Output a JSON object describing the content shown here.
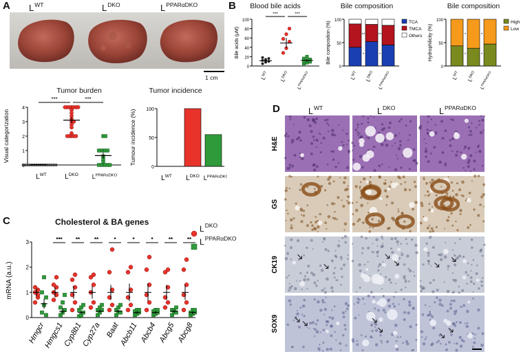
{
  "panels": {
    "A": "A",
    "B": "B",
    "C": "C",
    "D": "D"
  },
  "panelA": {
    "genotypes": [
      {
        "base": "L",
        "sup": "WT"
      },
      {
        "base": "L",
        "sup": "DKO"
      },
      {
        "base": "L",
        "sup": "PPARαDKO"
      }
    ],
    "scalebar": "1 cm"
  },
  "tumor_burden": {
    "title": "Tumor burden",
    "ylabel": "Visual categorization",
    "sig": [
      "***",
      "***"
    ]
  },
  "tumor_incidence": {
    "title": "Tumor incidence",
    "ylabel": "Tumour incidence (%)"
  },
  "blood_bile": {
    "title": "Blood bile acids",
    "ylabel": "Bile acids (μM)",
    "sig": [
      "***",
      "***"
    ]
  },
  "bile_comp": {
    "title": "Bile composition",
    "ylabel": "Bile composition (%)",
    "legend": [
      "TCA",
      "TMCA",
      "Others"
    ],
    "stars": [
      "**",
      "**",
      "*",
      "*"
    ]
  },
  "hydro": {
    "title": "Bile composition",
    "ylabel": "Hydrophilicity (%)",
    "legend": [
      "High",
      "Low"
    ],
    "stars": [
      "*",
      "*",
      "*",
      "*"
    ]
  },
  "panelC": {
    "title": "Cholesterol & BA genes",
    "ylabel": "mRNA (a.u.)",
    "legend": [
      {
        "base": "L",
        "sup": "DKO"
      },
      {
        "base": "L",
        "sup": "PPARαDKO"
      }
    ],
    "genes": [
      "Hmgcr",
      "Hmgcs1",
      "Cyp8b1",
      "Cyp27a",
      "Baat",
      "Abcb11",
      "Abcb4",
      "Abcg5",
      "Abcg8"
    ],
    "sig": [
      "",
      "***",
      "**",
      "**",
      "*",
      "*",
      "*",
      "**",
      "**"
    ]
  },
  "panelD": {
    "columns": [
      {
        "base": "L",
        "sup": "WT"
      },
      {
        "base": "L",
        "sup": "DKO"
      },
      {
        "base": "L",
        "sup": "PPARαDKO"
      }
    ],
    "rows": [
      "H&E",
      "GS",
      "CK19",
      "SOX9"
    ]
  },
  "colors": {
    "red": "#e8332b",
    "green": "#2f9a3a",
    "blue": "#1a3fb3",
    "darkred": "#b3141e",
    "olive": "#7a8a1e",
    "orange": "#f59a1b"
  },
  "chart_data": [
    {
      "type": "scatter",
      "title": "Tumor burden",
      "ylabel": "Visual categorization",
      "categories": [
        "LWT",
        "LDKO",
        "LPPARαDKO"
      ],
      "ylim": [
        0,
        4
      ],
      "yticks": [
        0,
        1,
        2,
        3,
        4
      ],
      "means": [
        0.02,
        3.1,
        0.65
      ],
      "sem": [
        0.02,
        0.2,
        0.2
      ],
      "points": [
        [
          0,
          0,
          0,
          0,
          0,
          0,
          0,
          0,
          0,
          0,
          0,
          0,
          0,
          0,
          0,
          0
        ],
        [
          4,
          4,
          4,
          4,
          4,
          4,
          4,
          3.8,
          3.6,
          3.4,
          3.2,
          3,
          3,
          2.8,
          2.6,
          2.2,
          2,
          2,
          2,
          2,
          2
        ],
        [
          2,
          2,
          1,
          1,
          1,
          1,
          1,
          0.6,
          0.4,
          0.2,
          0,
          0,
          0,
          0,
          0,
          0
        ]
      ]
    },
    {
      "type": "bar",
      "title": "Tumor incidence",
      "ylabel": "Tumour incidence (%)",
      "categories": [
        "LWT",
        "LDKO",
        "LPPARαDKO"
      ],
      "values": [
        0,
        100,
        55
      ],
      "ylim": [
        0,
        100
      ],
      "yticks": [
        0,
        50,
        100
      ]
    },
    {
      "type": "scatter",
      "title": "Blood bile acids",
      "ylabel": "Bile acids (μM)",
      "categories": [
        "LWT",
        "LDKO",
        "LPPARαDKO"
      ],
      "ylim": [
        0,
        100
      ],
      "yticks": [
        0,
        20,
        40,
        60,
        80,
        100
      ],
      "means": [
        11,
        49,
        12
      ],
      "sem": [
        3,
        11,
        3
      ],
      "points": [
        [
          5,
          8,
          10,
          12,
          14,
          16,
          18
        ],
        [
          28,
          38,
          52,
          58,
          68,
          80
        ],
        [
          5,
          7,
          9,
          10,
          12,
          14,
          16,
          20
        ]
      ]
    },
    {
      "type": "bar",
      "title": "Bile composition",
      "ylabel": "Bile composition (%)",
      "categories": [
        "LWT",
        "LDKO",
        "LPPARαDKO"
      ],
      "ylim": [
        0,
        100
      ],
      "yticks": [
        0,
        50,
        100
      ],
      "series": [
        {
          "name": "TCA",
          "values": [
            40,
            52,
            45
          ]
        },
        {
          "name": "TMCA",
          "values": [
            50,
            37,
            42
          ]
        },
        {
          "name": "Others",
          "values": [
            10,
            11,
            13
          ]
        }
      ]
    },
    {
      "type": "bar",
      "title": "Bile composition",
      "ylabel": "Hydrophilicity (%)",
      "categories": [
        "LWT",
        "LDKO",
        "LPPARαDKO"
      ],
      "ylim": [
        0,
        100
      ],
      "yticks": [
        0,
        50,
        100
      ],
      "series": [
        {
          "name": "High",
          "values": [
            43,
            38,
            47
          ]
        },
        {
          "name": "Low",
          "values": [
            57,
            62,
            53
          ]
        }
      ]
    },
    {
      "type": "scatter",
      "title": "Cholesterol & BA genes",
      "ylabel": "mRNA (a.u.)",
      "categories": [
        "Hmgcr",
        "Hmgcs1",
        "Cyp8b1",
        "Cyp27a",
        "Baat",
        "Abcb11",
        "Abcb4",
        "Abcg5",
        "Abcg8"
      ],
      "ylim": [
        0,
        3
      ],
      "yticks": [
        0,
        1,
        2,
        3
      ],
      "series": [
        {
          "name": "LDKO",
          "means": [
            1.0,
            1.0,
            1.0,
            1.0,
            1.0,
            1.0,
            1.0,
            1.0,
            1.0
          ],
          "sem": [
            0.15,
            0.2,
            0.25,
            0.25,
            0.3,
            0.35,
            0.35,
            0.3,
            0.3
          ],
          "points": [
            [
              0.6,
              0.8,
              1.0,
              1.1,
              1.2,
              0.9
            ],
            [
              0.7,
              0.9,
              1.0,
              1.2,
              1.3,
              1.6
            ],
            [
              0.3,
              0.6,
              0.9,
              1.2,
              1.5,
              1.7
            ],
            [
              0.4,
              0.6,
              1.0,
              1.3,
              1.6,
              1.7
            ],
            [
              0.3,
              0.5,
              0.8,
              1.1,
              1.8,
              2.7
            ],
            [
              0.3,
              0.5,
              0.8,
              1.1,
              1.8,
              2.0
            ],
            [
              0.3,
              0.6,
              0.9,
              1.3,
              1.9,
              2.4
            ],
            [
              0.4,
              0.6,
              0.8,
              1.2,
              1.8,
              1.9
            ],
            [
              0.3,
              0.6,
              0.9,
              1.3,
              1.9,
              2.3
            ]
          ]
        },
        {
          "name": "LPPARαDKO",
          "means": [
            0.55,
            0.25,
            0.2,
            0.25,
            0.25,
            0.2,
            0.2,
            0.25,
            0.2
          ],
          "sem": [
            0.2,
            0.1,
            0.05,
            0.05,
            0.05,
            0.05,
            0.05,
            0.05,
            0.05
          ],
          "points": [
            [
              0.2,
              0.5,
              0.8,
              1.0,
              1.6,
              0.1
            ],
            [
              0.1,
              0.2,
              0.3,
              0.4,
              0.6,
              0.9
            ],
            [
              0.05,
              0.1,
              0.2,
              0.3,
              0.4,
              0.5
            ],
            [
              0.1,
              0.2,
              0.3,
              0.3,
              0.4,
              0.5
            ],
            [
              0.1,
              0.2,
              0.2,
              0.3,
              0.4,
              0.5
            ],
            [
              0.1,
              0.15,
              0.2,
              0.25,
              0.3,
              0.3
            ],
            [
              0.1,
              0.15,
              0.2,
              0.25,
              0.3,
              0.3
            ],
            [
              0.1,
              0.2,
              0.2,
              0.3,
              0.3,
              0.4
            ],
            [
              0.1,
              0.15,
              0.2,
              0.2,
              0.3,
              0.3
            ]
          ]
        }
      ]
    }
  ]
}
